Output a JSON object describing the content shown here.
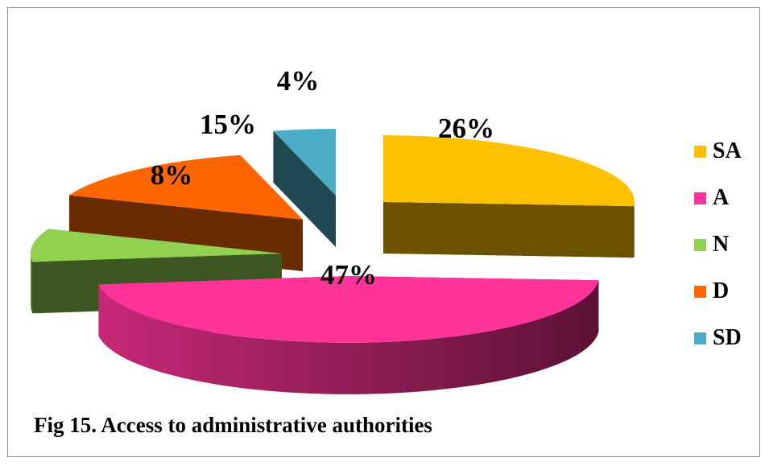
{
  "chart_data": {
    "type": "pie",
    "title": "",
    "categories": [
      "SA",
      "A",
      "N",
      "D",
      "SD"
    ],
    "values": [
      26,
      47,
      8,
      15,
      4
    ],
    "data_labels": [
      "26%",
      "47%",
      "8%",
      "15%",
      "4%"
    ],
    "colors": [
      "#FFC000",
      "#FF3399",
      "#92D050",
      "#FF6600",
      "#4BACC6"
    ],
    "style": "3d-exploded",
    "legend_position": "right"
  },
  "caption": "Fig 15. Access to administrative authorities"
}
